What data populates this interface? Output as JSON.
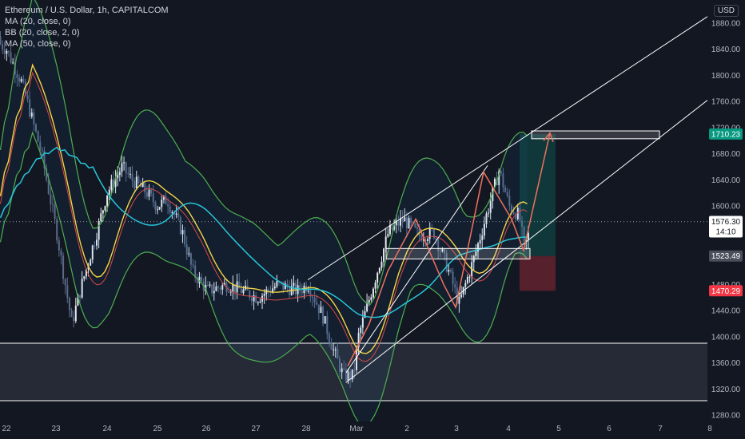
{
  "header": {
    "title": "Ethereum / U.S. Dollar, 1h, CAPITALCOM",
    "indicators": [
      "MA (20, close, 0)",
      "BB (20, close, 2, 0)",
      "MA (50, close, 0)"
    ],
    "currency": "USD"
  },
  "chart_data": {
    "type": "candlestick",
    "x_ticks": [
      "22",
      "23",
      "24",
      "25",
      "26",
      "27",
      "28",
      "Mar",
      "2",
      "3",
      "4",
      "5",
      "6",
      "7",
      "8"
    ],
    "y_ticks": [
      1280,
      1320,
      1360,
      1400,
      1440,
      1480,
      1520,
      1560,
      1600,
      1640,
      1680,
      1720,
      1760,
      1800,
      1840,
      1880
    ],
    "ylim": [
      1270,
      1905
    ],
    "price_tags": {
      "current": {
        "value": "1576.30",
        "countdown": "14:10",
        "color": "#ffffff"
      },
      "target": {
        "value": "1710.23",
        "color": "#089981"
      },
      "entry": {
        "value": "1523.49",
        "color": "#4a4e5a"
      },
      "stop": {
        "value": "1470.29",
        "color": "#f23645"
      }
    },
    "support_zone": [
      1302,
      1390
    ],
    "resistance_box": [
      1703,
      1715
    ],
    "series": [
      {
        "name": "MA (20, close, 0)",
        "color": "#f5d547"
      },
      {
        "name": "BB (20, close, 2, 0)",
        "color": "#4caf50"
      },
      {
        "name": "MA (50, close, 0)",
        "color": "#26c6da"
      }
    ],
    "channel_color": "#ffffff",
    "projection_color": "#f0725e"
  }
}
